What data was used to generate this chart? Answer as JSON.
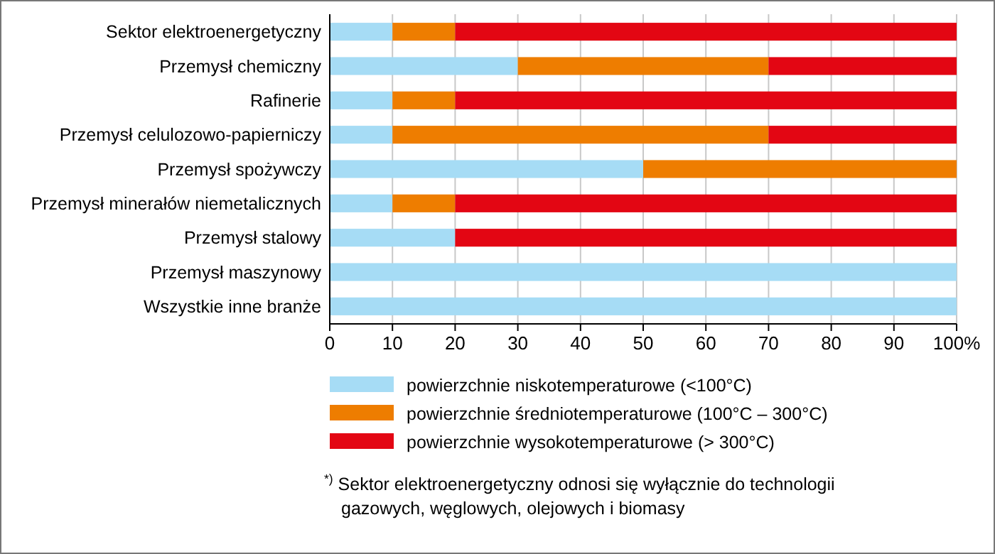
{
  "chart_data": {
    "type": "bar",
    "orientation": "horizontal",
    "stacked": true,
    "categories": [
      "Sektor elektroenergetyczny",
      "Przemysł chemiczny",
      "Rafinerie",
      "Przemysł celulozowo-papierniczy",
      "Przemysł spożywczy",
      "Przemysł minerałów niemetalicznych",
      "Przemysł stalowy",
      "Przemysł maszynowy",
      "Wszystkie inne branże"
    ],
    "series": [
      {
        "name": "powierzchnie niskotemperaturowe (<100°C)",
        "color": "#a6dcf5",
        "values": [
          10,
          30,
          10,
          10,
          50,
          10,
          20,
          100,
          100
        ]
      },
      {
        "name": "powierzchnie średniotemperaturowe (100°C – 300°C)",
        "color": "#ee7d00",
        "values": [
          10,
          40,
          10,
          60,
          50,
          10,
          0,
          0,
          0
        ]
      },
      {
        "name": "powierzchnie wysokotemperaturowe (> 300°C)",
        "color": "#e30613",
        "values": [
          80,
          30,
          80,
          30,
          0,
          80,
          80,
          0,
          0
        ]
      }
    ],
    "xlim": [
      0,
      100
    ],
    "xticks": [
      0,
      10,
      20,
      30,
      40,
      50,
      60,
      70,
      80,
      90,
      {
        "value": 100,
        "label": "100%"
      }
    ],
    "grid": "x",
    "legend": "bottom",
    "annotations": [
      "$^{*)}$ Sektor elektroenergetyczny odnosi się wyłącznie do technologii gazowych, węglowych, olejowych i biomasy"
    ]
  }
}
